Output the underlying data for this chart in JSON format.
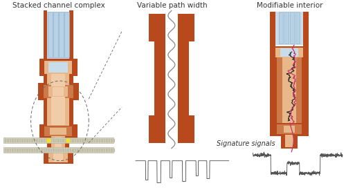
{
  "panel_titles": [
    "Stacked channel complex",
    "Variable path width",
    "Modifiable interior"
  ],
  "signature_label": "Signature signals",
  "bg_color": "#ffffff",
  "brown_dark": "#b8491c",
  "brown_mid": "#cc7a4a",
  "brown_light": "#dda070",
  "brown_lighter": "#e8b88a",
  "brown_inner": "#f0cca8",
  "blue_dark": "#8ab0cc",
  "blue_light": "#b8d0e4",
  "blue_bg": "#c8dcea",
  "membrane_color": "#d0cdb8",
  "yellow": "#f0e030",
  "pink": "#cc3366",
  "dark_red": "#993322",
  "dark_gray": "#333333",
  "signal_color": "#555555"
}
